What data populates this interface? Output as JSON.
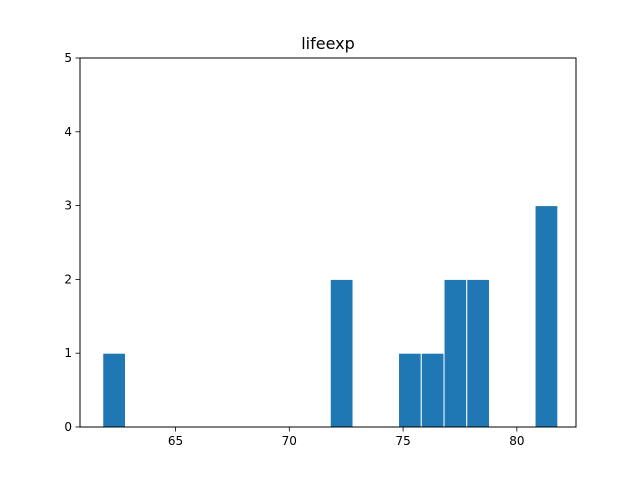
{
  "chart_data": {
    "type": "bar",
    "title": "lifeexp",
    "xlabel": "",
    "ylabel": "",
    "bin_width": 1,
    "bins": [
      {
        "start": 61.8,
        "end": 62.8,
        "count": 1
      },
      {
        "start": 71.8,
        "end": 72.8,
        "count": 2
      },
      {
        "start": 74.8,
        "end": 75.8,
        "count": 1
      },
      {
        "start": 75.8,
        "end": 76.8,
        "count": 1
      },
      {
        "start": 76.8,
        "end": 77.8,
        "count": 2
      },
      {
        "start": 77.8,
        "end": 78.8,
        "count": 2
      },
      {
        "start": 80.8,
        "end": 81.8,
        "count": 3
      }
    ],
    "xlim": [
      60.8,
      82.6
    ],
    "ylim": [
      0,
      5
    ],
    "x_ticks": [
      65,
      70,
      75,
      80
    ],
    "y_ticks": [
      0,
      1,
      2,
      3,
      4,
      5
    ],
    "grid": false,
    "colors": {
      "bar": "#1f77b4",
      "bar_edge": "#ffffff",
      "axis": "#000000"
    }
  }
}
